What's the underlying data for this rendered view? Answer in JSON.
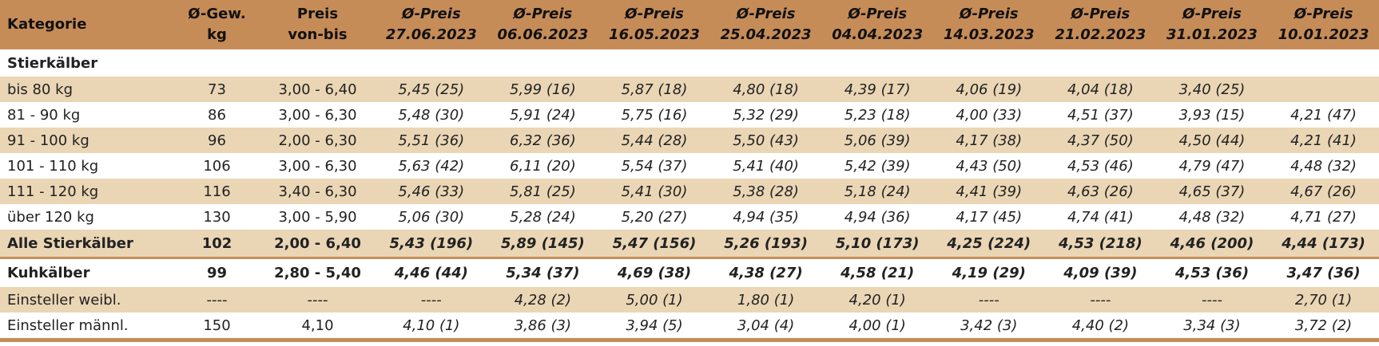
{
  "headers": [
    {
      "l1": "Kategorie",
      "l2": ""
    },
    {
      "l1": "Ø-Gew.",
      "l2": "kg"
    },
    {
      "l1": "Preis",
      "l2": "von-bis"
    },
    {
      "l1": "Ø-Preis",
      "l2": "27.06.2023"
    },
    {
      "l1": "Ø-Preis",
      "l2": "06.06.2023"
    },
    {
      "l1": "Ø-Preis",
      "l2": "16.05.2023"
    },
    {
      "l1": "Ø-Preis",
      "l2": "25.04.2023"
    },
    {
      "l1": "Ø-Preis",
      "l2": "04.04.2023"
    },
    {
      "l1": "Ø-Preis",
      "l2": "14.03.2023"
    },
    {
      "l1": "Ø-Preis",
      "l2": "21.02.2023"
    },
    {
      "l1": "Ø-Preis",
      "l2": "31.01.2023"
    },
    {
      "l1": "Ø-Preis",
      "l2": "10.01.2023"
    }
  ],
  "section_title": "Stierkälber",
  "rows": [
    {
      "cells": [
        "bis 80 kg",
        "73",
        "3,00 - 6,40",
        "5,45 (25)",
        "5,99 (16)",
        "5,87 (18)",
        "4,80 (18)",
        "4,39 (17)",
        "4,06 (19)",
        "4,04 (18)",
        "3,40 (25)",
        ""
      ]
    },
    {
      "cells": [
        "81 - 90 kg",
        "86",
        "3,00 - 6,30",
        "5,48 (30)",
        "5,91 (24)",
        "5,75 (16)",
        "5,32 (29)",
        "5,23 (18)",
        "4,00 (33)",
        "4,51 (37)",
        "3,93 (15)",
        "4,21 (47)"
      ]
    },
    {
      "cells": [
        "91 - 100 kg",
        "96",
        "2,00 - 6,30",
        "5,51 (36)",
        "6,32 (36)",
        "5,44 (28)",
        "5,50 (43)",
        "5,06 (39)",
        "4,17 (38)",
        "4,37 (50)",
        "4,50 (44)",
        "4,21 (41)"
      ]
    },
    {
      "cells": [
        "101 - 110 kg",
        "106",
        "3,00 - 6,30",
        "5,63 (42)",
        "6,11 (20)",
        "5,54 (37)",
        "5,41 (40)",
        "5,42 (39)",
        "4,43 (50)",
        "4,53 (46)",
        "4,79 (47)",
        "4,48 (32)"
      ]
    },
    {
      "cells": [
        "111 - 120 kg",
        "116",
        "3,40 - 6,30",
        "5,46 (33)",
        "5,81 (25)",
        "5,41 (30)",
        "5,38 (28)",
        "5,18 (24)",
        "4,41 (39)",
        "4,63 (26)",
        "4,65 (37)",
        "4,67 (26)"
      ]
    },
    {
      "cells": [
        "über 120 kg",
        "130",
        "3,00 - 5,90",
        "5,06 (30)",
        "5,28 (24)",
        "5,20 (27)",
        "4,94 (35)",
        "4,94 (36)",
        "4,17 (45)",
        "4,74 (41)",
        "4,48 (32)",
        "4,71 (27)"
      ]
    },
    {
      "cells": [
        "Alle Stierkälber",
        "102",
        "2,00 - 6,40",
        "5,43 (196)",
        "5,89 (145)",
        "5,47 (156)",
        "5,26 (193)",
        "5,10 (173)",
        "4,25 (224)",
        "4,53 (218)",
        "4,46 (200)",
        "4,44 (173)"
      ]
    },
    {
      "cells": [
        "Kuhkälber",
        "99",
        "2,80 - 5,40",
        "4,46 (44)",
        "5,34 (37)",
        "4,69 (38)",
        "4,38 (27)",
        "4,58 (21)",
        "4,19 (29)",
        "4,09 (39)",
        "4,53 (36)",
        "3,47 (36)"
      ]
    },
    {
      "cells": [
        "Einsteller weibl.",
        "----",
        "----",
        "----",
        "4,28 (2)",
        "5,00 (1)",
        "1,80 (1)",
        "4,20 (1)",
        "----",
        "----",
        "----",
        "2,70 (1)"
      ]
    },
    {
      "cells": [
        "Einsteller männl.",
        "150",
        "4,10",
        "4,10 (1)",
        "3,86 (3)",
        "3,94 (5)",
        "3,04 (4)",
        "4,00 (1)",
        "3,42 (3)",
        "4,40 (2)",
        "3,34 (3)",
        "3,72 (2)"
      ]
    }
  ],
  "colors": {
    "header_bg": "#c68c58",
    "shade_bg": "#ead6b5"
  }
}
